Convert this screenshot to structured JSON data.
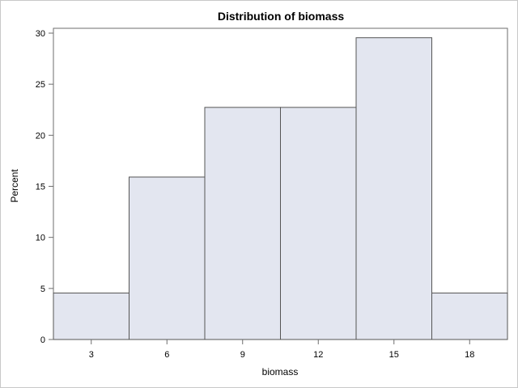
{
  "chart_data": {
    "type": "bar",
    "title": "Distribution of biomass",
    "xlabel": "biomass",
    "ylabel": "Percent",
    "bins": [
      {
        "center": 3,
        "value": 4.55
      },
      {
        "center": 6,
        "value": 15.91
      },
      {
        "center": 9,
        "value": 22.73
      },
      {
        "center": 12,
        "value": 22.73
      },
      {
        "center": 15,
        "value": 29.55
      },
      {
        "center": 18,
        "value": 4.55
      }
    ],
    "bin_width": 3,
    "xticks": [
      3,
      6,
      9,
      12,
      15,
      18
    ],
    "yticks": [
      0,
      5,
      10,
      15,
      20,
      25,
      30
    ],
    "xlim": [
      1.5,
      19.5
    ],
    "ylim": [
      0,
      30
    ],
    "grid": false,
    "bar_fill": "#e3e6f0",
    "bar_stroke": "#555555"
  }
}
